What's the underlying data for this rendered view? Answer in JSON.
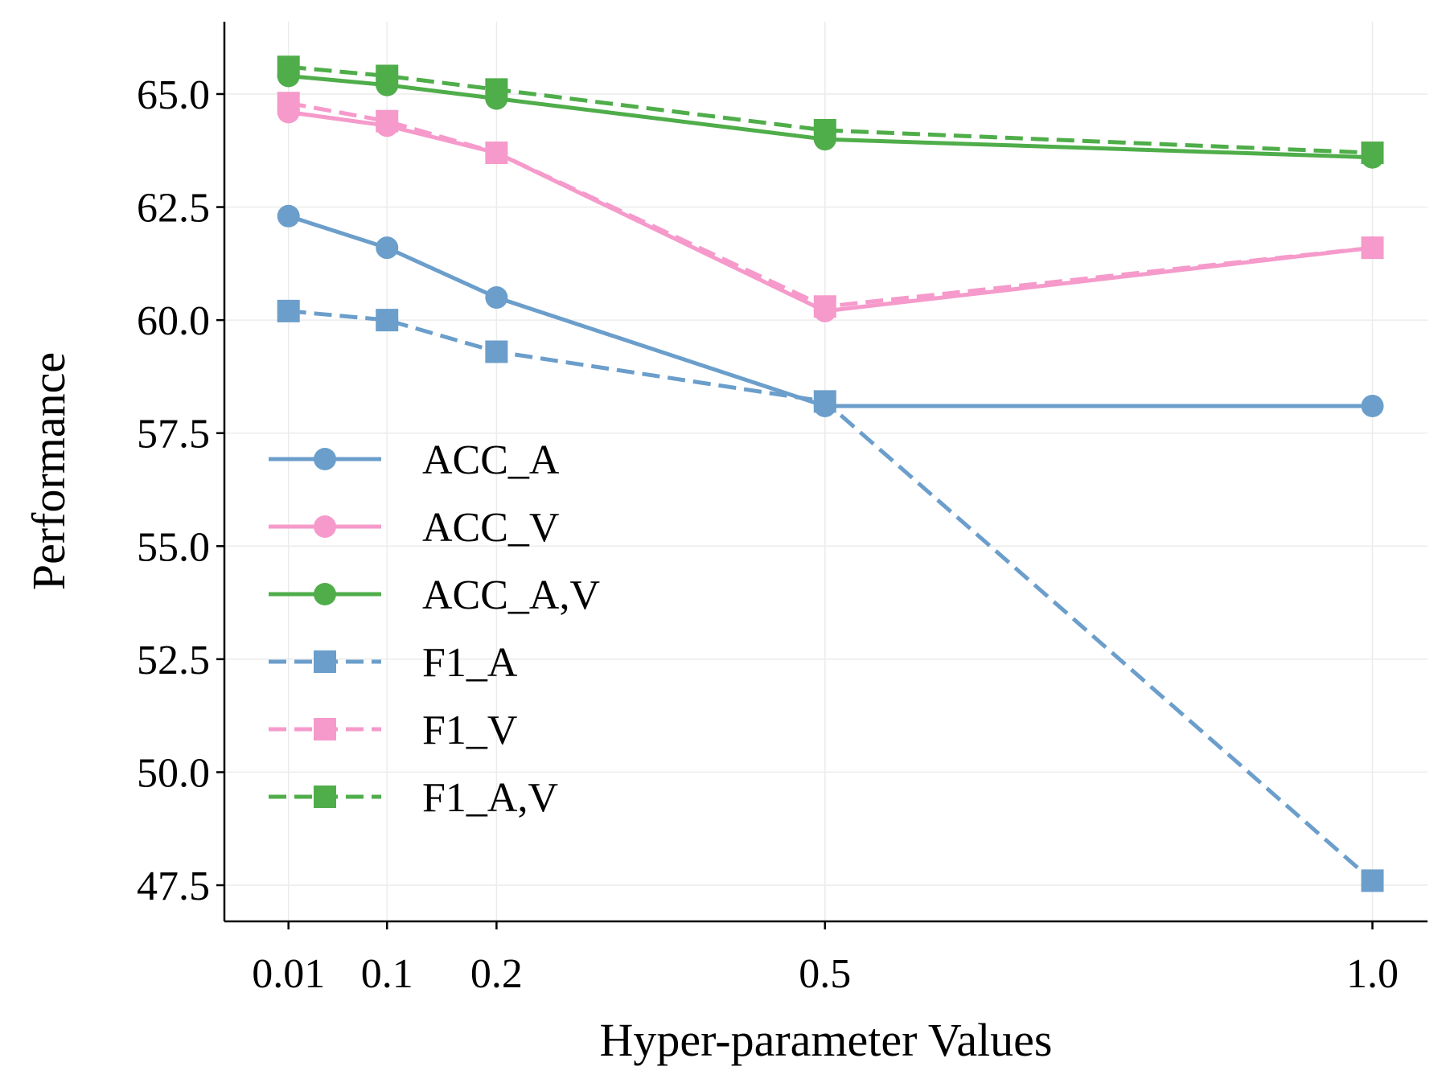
{
  "chart_data": {
    "type": "line",
    "x": [
      0.01,
      0.1,
      0.2,
      0.5,
      1.0
    ],
    "x_tick_labels": [
      "0.01",
      "0.1",
      "0.2",
      "0.5",
      "1.0"
    ],
    "y_ticks": [
      47.5,
      50.0,
      52.5,
      55.0,
      57.5,
      60.0,
      62.5,
      65.0
    ],
    "y_tick_labels": [
      "47.5",
      "50.0",
      "52.5",
      "55.0",
      "57.5",
      "60.0",
      "62.5",
      "65.0"
    ],
    "ylim": [
      46.7,
      66.6
    ],
    "xlabel": "Hyper-parameter Values",
    "ylabel": "Performance",
    "grid": true,
    "legend_position": "center-left",
    "series": [
      {
        "name": "ACC_A",
        "color": "#6b9ecb",
        "line": "solid",
        "marker": "circle",
        "values": [
          62.3,
          61.6,
          60.5,
          58.1,
          58.1
        ]
      },
      {
        "name": "ACC_V",
        "color": "#f59acb",
        "line": "solid",
        "marker": "circle",
        "values": [
          64.6,
          64.3,
          63.7,
          60.2,
          61.6
        ]
      },
      {
        "name": "ACC_A,V",
        "color": "#4fad4a",
        "line": "solid",
        "marker": "circle",
        "values": [
          65.4,
          65.2,
          64.9,
          64.0,
          63.6
        ]
      },
      {
        "name": "F1_A",
        "color": "#6b9ecb",
        "line": "dashed",
        "marker": "square",
        "values": [
          60.2,
          60.0,
          59.3,
          58.2,
          47.6
        ]
      },
      {
        "name": "F1_V",
        "color": "#f59acb",
        "line": "dashed",
        "marker": "square",
        "values": [
          64.8,
          64.4,
          63.7,
          60.3,
          61.6
        ]
      },
      {
        "name": "F1_A,V",
        "color": "#4fad4a",
        "line": "dashed",
        "marker": "square",
        "values": [
          65.6,
          65.4,
          65.1,
          64.2,
          63.7
        ]
      }
    ]
  }
}
